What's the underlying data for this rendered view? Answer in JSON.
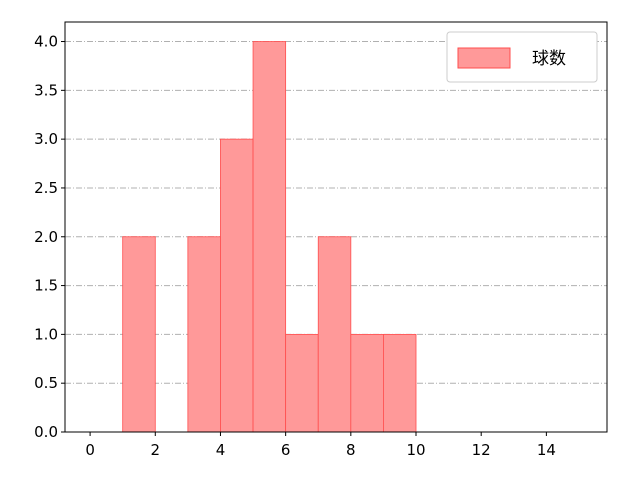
{
  "chart_data": {
    "type": "bar",
    "subtype": "histogram",
    "bins": [
      [
        1,
        2
      ],
      [
        3,
        4
      ],
      [
        4,
        5
      ],
      [
        5,
        6
      ],
      [
        6,
        7
      ],
      [
        7,
        8
      ],
      [
        8,
        9
      ],
      [
        9,
        10
      ]
    ],
    "values": [
      2,
      2,
      3,
      4,
      1,
      2,
      1,
      1
    ],
    "series": [
      {
        "name": "球数",
        "color": "#ff9999",
        "edgecolor": "#ff4d4d"
      }
    ],
    "xlim": [
      -0.77,
      15.86
    ],
    "ylim": [
      0,
      4.2
    ],
    "xticks": [
      "0",
      "2",
      "4",
      "6",
      "8",
      "10",
      "12",
      "14"
    ],
    "yticks": [
      "0.0",
      "0.5",
      "1.0",
      "1.5",
      "2.0",
      "2.5",
      "3.0",
      "3.5",
      "4.0"
    ],
    "grid": {
      "axis": "y",
      "style": "dash-dot",
      "color": "#b0b0b0"
    },
    "legend": "top-right",
    "title": "",
    "xlabel": "",
    "ylabel": ""
  }
}
